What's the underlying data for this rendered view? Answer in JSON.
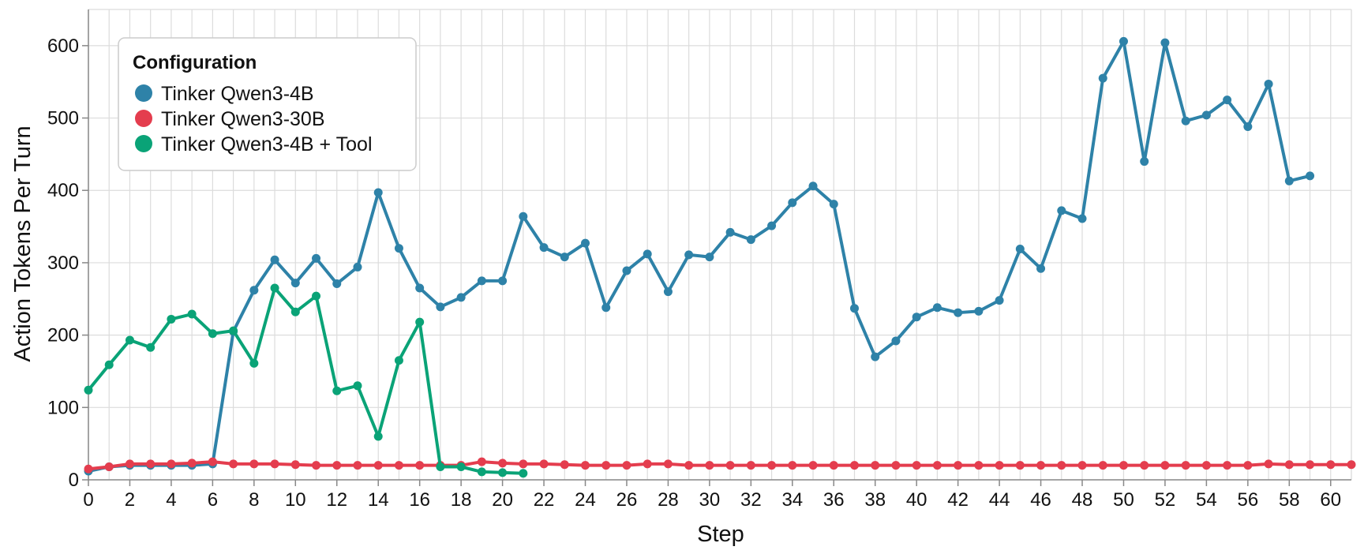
{
  "chart_data": {
    "type": "line",
    "xlabel": "Step",
    "ylabel": "Action Tokens Per Turn",
    "xlim": [
      0,
      61
    ],
    "ylim": [
      0,
      650
    ],
    "x_ticks": [
      0,
      2,
      4,
      6,
      8,
      10,
      12,
      14,
      16,
      18,
      20,
      22,
      24,
      26,
      28,
      30,
      32,
      34,
      36,
      38,
      40,
      42,
      44,
      46,
      48,
      50,
      52,
      54,
      56,
      58,
      60
    ],
    "y_ticks": [
      0,
      100,
      200,
      300,
      400,
      500,
      600
    ],
    "grid": true,
    "legend": {
      "title": "Configuration",
      "position": "top-left"
    },
    "series": [
      {
        "name": "Tinker Qwen3-4B",
        "color": "#2e82a8",
        "x": [
          0,
          1,
          2,
          3,
          4,
          5,
          6,
          7,
          8,
          9,
          10,
          11,
          12,
          13,
          14,
          15,
          16,
          17,
          18,
          19,
          20,
          21,
          22,
          23,
          24,
          25,
          26,
          27,
          28,
          29,
          30,
          31,
          32,
          33,
          34,
          35,
          36,
          37,
          38,
          39,
          40,
          41,
          42,
          43,
          44,
          45,
          46,
          47,
          48,
          49,
          50,
          51,
          52,
          53,
          54,
          55,
          56,
          57,
          58,
          59
        ],
        "values": [
          12,
          18,
          20,
          20,
          20,
          20,
          22,
          205,
          262,
          304,
          272,
          306,
          271,
          294,
          397,
          320,
          265,
          239,
          252,
          275,
          275,
          364,
          321,
          308,
          327,
          238,
          289,
          312,
          260,
          311,
          308,
          342,
          332,
          351,
          383,
          406,
          381,
          237,
          170,
          192,
          225,
          238,
          231,
          233,
          248,
          319,
          292,
          372,
          361,
          555,
          606,
          440,
          604,
          496,
          504,
          525,
          488,
          547,
          413,
          420
        ]
      },
      {
        "name": "Tinker Qwen3-30B",
        "color": "#e43d4e",
        "x": [
          0,
          1,
          2,
          3,
          4,
          5,
          6,
          7,
          8,
          9,
          10,
          11,
          12,
          13,
          14,
          15,
          16,
          17,
          18,
          19,
          20,
          21,
          22,
          23,
          24,
          25,
          26,
          27,
          28,
          29,
          30,
          31,
          32,
          33,
          34,
          35,
          36,
          37,
          38,
          39,
          40,
          41,
          42,
          43,
          44,
          45,
          46,
          47,
          48,
          49,
          50,
          51,
          52,
          53,
          54,
          55,
          56,
          57,
          58,
          59,
          60,
          61
        ],
        "values": [
          15,
          18,
          22,
          22,
          22,
          23,
          25,
          22,
          22,
          22,
          21,
          20,
          20,
          20,
          20,
          20,
          20,
          20,
          20,
          25,
          23,
          22,
          22,
          21,
          20,
          20,
          20,
          22,
          22,
          20,
          20,
          20,
          20,
          20,
          20,
          20,
          20,
          20,
          20,
          20,
          20,
          20,
          20,
          20,
          20,
          20,
          20,
          20,
          20,
          20,
          20,
          20,
          20,
          20,
          20,
          20,
          20,
          22,
          21,
          21,
          21,
          21
        ]
      },
      {
        "name": "Tinker Qwen3-4B + Tool",
        "color": "#0aa377",
        "x": [
          0,
          1,
          2,
          3,
          4,
          5,
          6,
          7,
          8,
          9,
          10,
          11,
          12,
          13,
          14,
          15,
          16,
          17,
          18,
          19,
          20,
          21
        ],
        "values": [
          124,
          159,
          193,
          183,
          222,
          229,
          202,
          206,
          161,
          265,
          232,
          254,
          123,
          130,
          60,
          165,
          218,
          18,
          18,
          11,
          10,
          9
        ]
      }
    ]
  }
}
